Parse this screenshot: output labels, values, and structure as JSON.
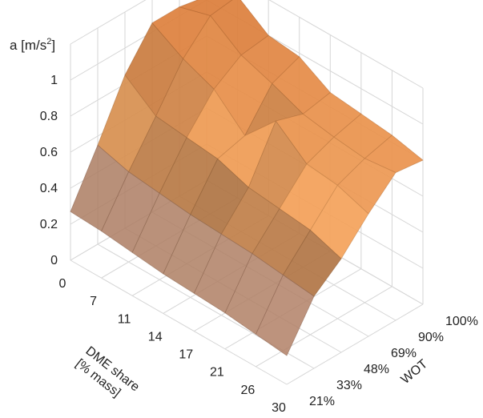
{
  "chart_data": {
    "type": "surface",
    "zlabel_prefix": "a [m/s",
    "zlabel_sup": "2",
    "zlabel_suffix": "]",
    "xlabel_line1": "DME share",
    "xlabel_line2": "[% mass]",
    "ylabel": "WOT",
    "x_categories": [
      "0",
      "7",
      "11",
      "14",
      "17",
      "21",
      "26",
      "30"
    ],
    "y_categories": [
      "21%",
      "33%",
      "48%",
      "69%",
      "90%",
      "100%"
    ],
    "z_ticks": [
      "0",
      "0.2",
      "0.4",
      "0.6",
      "0.8",
      "1"
    ],
    "zlim": [
      0,
      1.2
    ],
    "grid": true,
    "colors": {
      "low": "#d9a083",
      "mid": "#8a5a38",
      "high": "#f4a25a",
      "grid": "#d6d6d6"
    },
    "values": [
      [
        0.27,
        0.55,
        0.85,
        1.05,
        1.05,
        1.02
      ],
      [
        0.26,
        0.5,
        0.72,
        0.95,
        1.1,
        1.12
      ],
      [
        0.24,
        0.48,
        0.7,
        0.88,
        0.98,
        1.0
      ],
      [
        0.22,
        0.46,
        0.68,
        0.72,
        0.92,
        0.98
      ],
      [
        0.21,
        0.45,
        0.62,
        0.9,
        0.85,
        0.88
      ],
      [
        0.2,
        0.44,
        0.6,
        0.76,
        0.82,
        0.86
      ],
      [
        0.18,
        0.42,
        0.58,
        0.74,
        0.8,
        0.84
      ],
      [
        0.16,
        0.4,
        0.52,
        0.68,
        0.82,
        0.8
      ]
    ]
  }
}
